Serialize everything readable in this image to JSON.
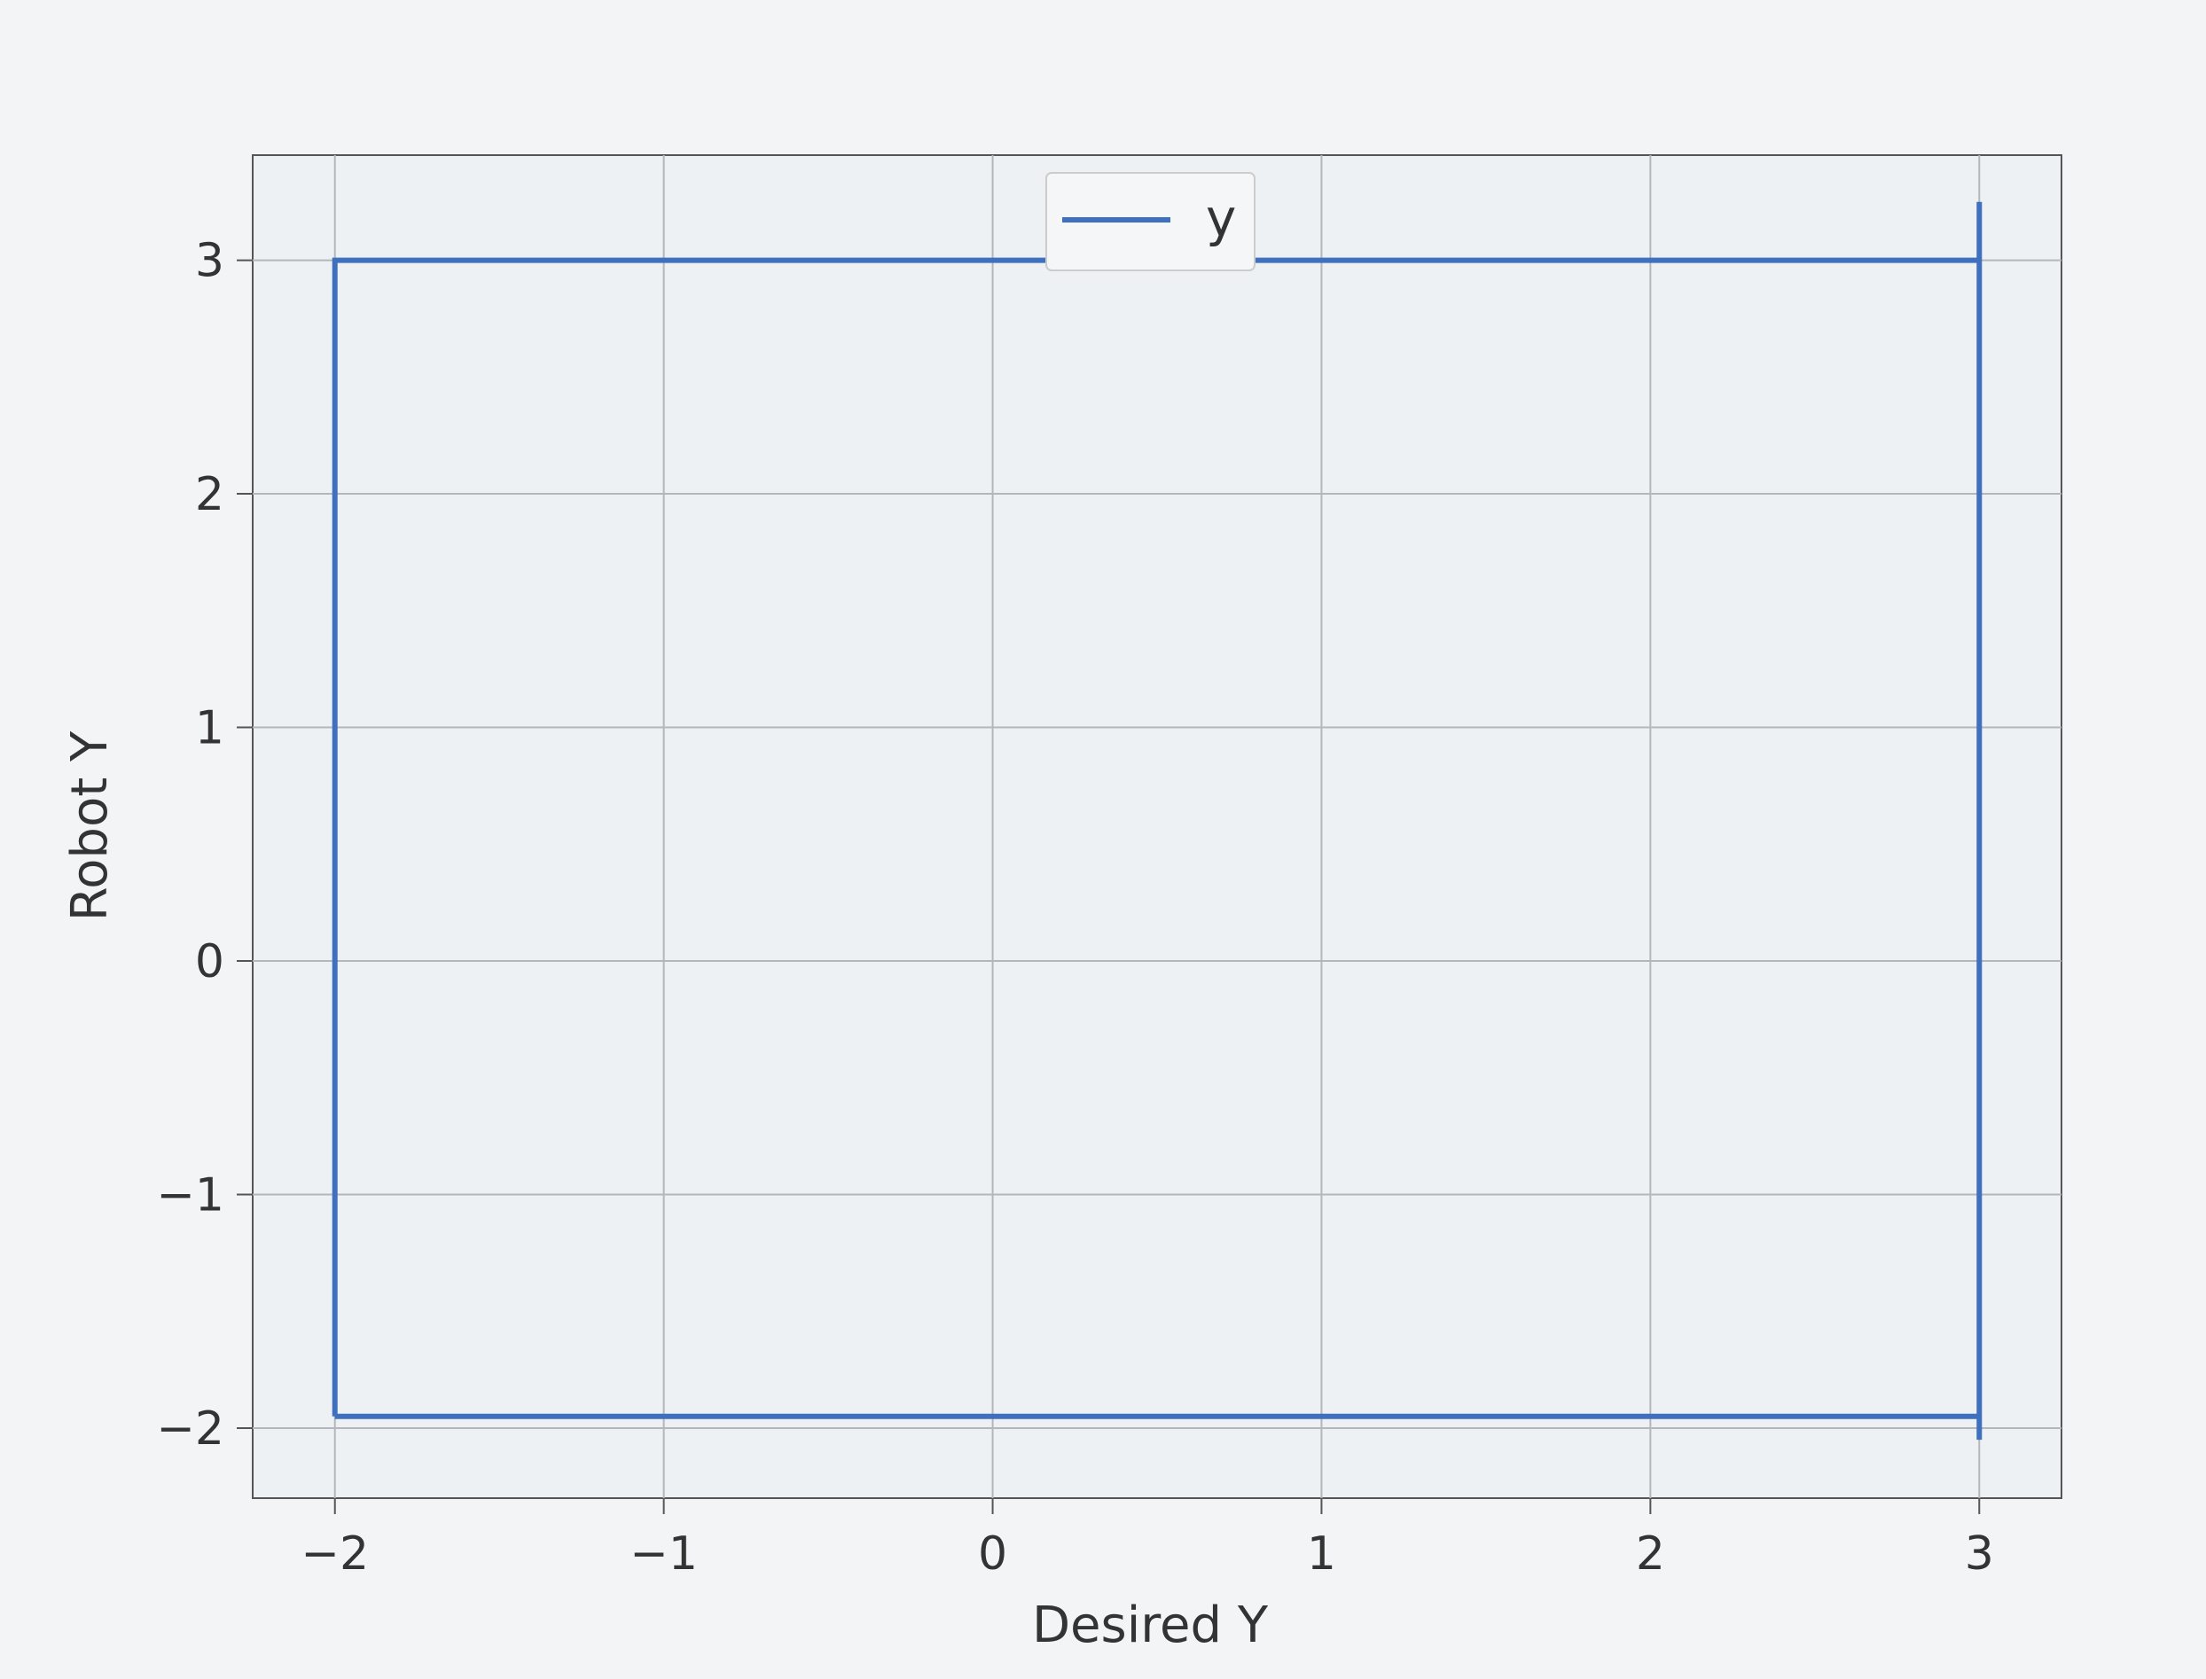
{
  "chart_data": {
    "type": "line",
    "title": "",
    "xlabel": "Desired Y",
    "ylabel": "Robot Y",
    "xlim": [
      -2.25,
      3.25
    ],
    "ylim": [
      -2.3,
      3.45
    ],
    "xticks": [
      -2,
      -1,
      0,
      1,
      2,
      3
    ],
    "yticks": [
      -2,
      -1,
      0,
      1,
      2,
      3
    ],
    "xtick_labels": [
      "−2",
      "−1",
      "0",
      "1",
      "2",
      "3"
    ],
    "ytick_labels": [
      "−2",
      "−1",
      "0",
      "1",
      "2",
      "3"
    ],
    "grid": true,
    "legend": "upper-center",
    "series": [
      {
        "name": "y",
        "color": "#3f6fbf",
        "x": [
          -2.0,
          -2.0,
          3.0,
          3.0,
          3.0,
          3.0,
          -2.0
        ],
        "y": [
          -1.95,
          3.0,
          3.0,
          3.25,
          -2.05,
          -1.95,
          -1.95
        ]
      }
    ]
  }
}
